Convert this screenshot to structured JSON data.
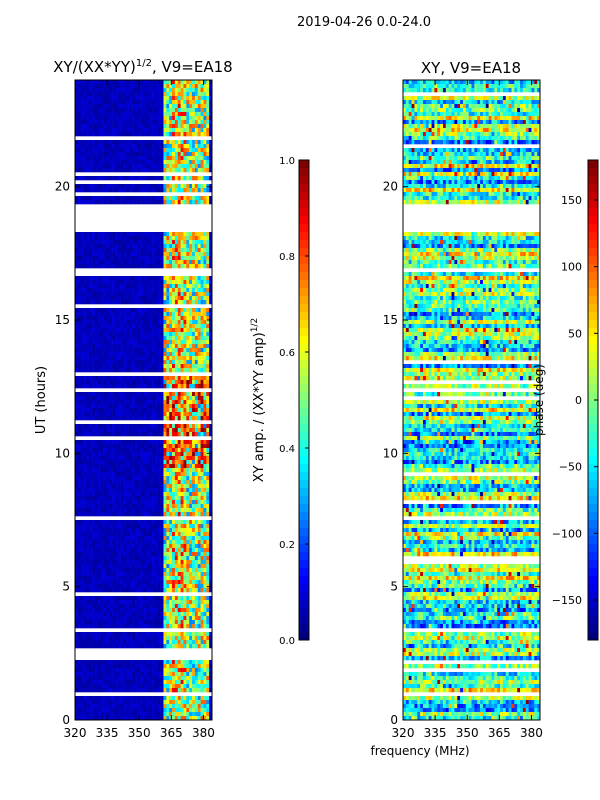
{
  "suptitle": "2019-04-26 0.0-24.0",
  "chart_data": [
    {
      "type": "heatmap",
      "title": "XY/(XX*YY)",
      "title_superscript": "1/2",
      "title_suffix": ", V9=EA18",
      "xlabel": "",
      "ylabel": "UT (hours)",
      "xlim": [
        320,
        384
      ],
      "ylim": [
        0,
        24
      ],
      "xticks": [
        320,
        335,
        350,
        365,
        380
      ],
      "yticks": [
        0,
        5,
        10,
        15,
        20
      ],
      "colorbar": {
        "label": "XY amp. / (XX*YY amp)",
        "label_superscript": "1/2",
        "range": [
          0.0,
          1.0
        ],
        "ticks": [
          "0.0",
          "0.2",
          "0.4",
          "0.6",
          "0.8",
          "1.0"
        ],
        "tick_values": [
          0.0,
          0.2,
          0.4,
          0.6,
          0.8,
          1.0
        ],
        "colormap": "jet"
      },
      "background_value": 0.03,
      "active_band_MHz": [
        361,
        382
      ],
      "flagged_hours": [
        [
          18.25,
          19.3
        ],
        [
          0.85,
          1.05
        ]
      ],
      "notes": "Background mostly near 0; bright striations (0.3-1.0) in 361-382 MHz band"
    },
    {
      "type": "heatmap",
      "title": "XY, V9=EA18",
      "xlabel": "frequency (MHz)",
      "ylabel": "",
      "xlim": [
        320,
        384
      ],
      "ylim": [
        0,
        24
      ],
      "xticks": [
        320,
        335,
        350,
        365,
        380
      ],
      "yticks": [
        0,
        5,
        10,
        15,
        20
      ],
      "colorbar": {
        "label": "phase (deg)",
        "range": [
          -180,
          180
        ],
        "ticks": [
          "-150",
          "-100",
          "-50",
          "0",
          "50",
          "100",
          "150"
        ],
        "tick_values": [
          -150,
          -100,
          -50,
          0,
          50,
          100,
          150
        ],
        "colormap": "jet"
      },
      "flagged_hours": [
        [
          18.25,
          19.3
        ],
        [
          0.85,
          1.05
        ]
      ],
      "notes": "Noisy phase, horizontal banding across full band"
    }
  ],
  "colors": {
    "jet": [
      "#00007f",
      "#0000ff",
      "#007fff",
      "#00ffff",
      "#7fff7f",
      "#ffff00",
      "#ff7f00",
      "#ff0000",
      "#7f0000"
    ]
  }
}
